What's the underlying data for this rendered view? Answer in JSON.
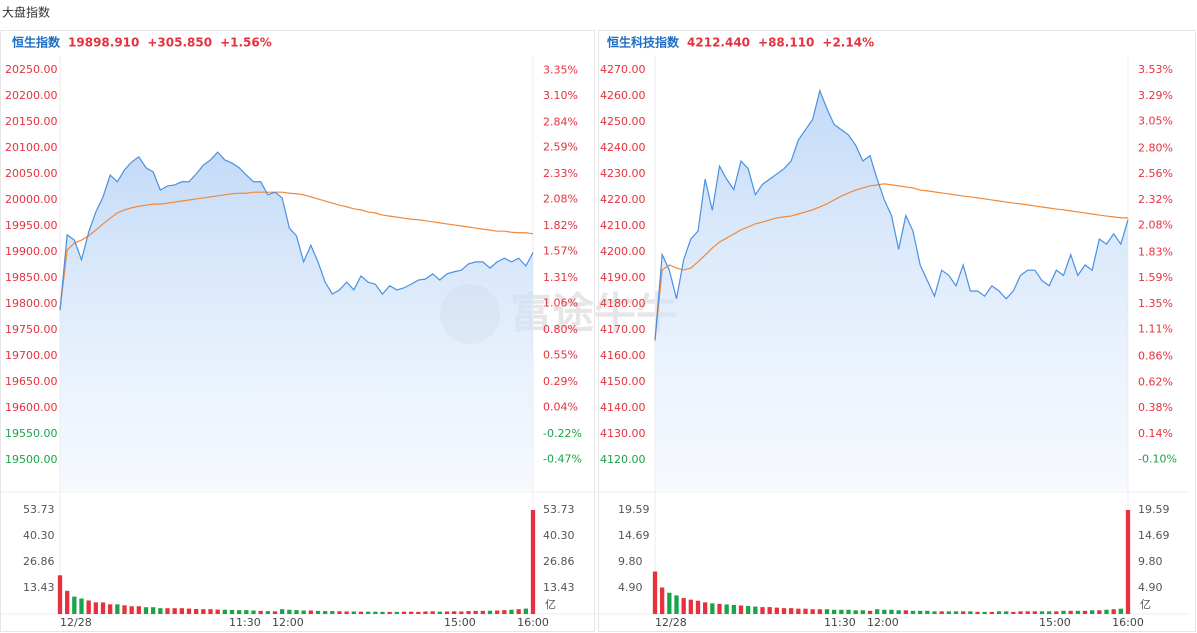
{
  "page_title": "大盘指数",
  "watermark": "富途牛牛",
  "chart_data": [
    {
      "type": "line",
      "name": "恒生指数",
      "last": "19898.910",
      "change": "+305.850",
      "change_pct": "+1.56%",
      "x": [
        0,
        5,
        10,
        15,
        20,
        25,
        30,
        35,
        40,
        45,
        50,
        55,
        60,
        65,
        70,
        75,
        80,
        85,
        90,
        95,
        100,
        105,
        110,
        115,
        120,
        125,
        130,
        135,
        140,
        145,
        150,
        155,
        160,
        165,
        170,
        175,
        180,
        185,
        190,
        195,
        200,
        205,
        210,
        215,
        220,
        225,
        230,
        235,
        240,
        245,
        250,
        255,
        260,
        265,
        270,
        275,
        280,
        285,
        290,
        295,
        300,
        305,
        310,
        315,
        320,
        325,
        330
      ],
      "xlim": [
        0,
        330
      ],
      "xticks": [
        {
          "value": 0,
          "label": "12/28"
        },
        {
          "value": 129,
          "label": "11:30"
        },
        {
          "value": 159,
          "label": "12:00"
        },
        {
          "value": 279,
          "label": "15:00"
        },
        {
          "value": 330,
          "label": "16:00"
        }
      ],
      "series": [
        {
          "color": "#4a90e2",
          "values": [
            19788,
            19933,
            19923,
            19885,
            19938,
            19977,
            20006,
            20048,
            20035,
            20058,
            20073,
            20083,
            20062,
            20054,
            20019,
            20027,
            20029,
            20035,
            20035,
            20050,
            20067,
            20077,
            20092,
            20077,
            20071,
            20062,
            20048,
            20035,
            20035,
            20010,
            20015,
            20004,
            19946,
            19931,
            19881,
            19913,
            19881,
            19842,
            19819,
            19827,
            19842,
            19827,
            19854,
            19842,
            19838,
            19819,
            19835,
            19827,
            19831,
            19838,
            19846,
            19848,
            19858,
            19846,
            19858,
            19862,
            19865,
            19877,
            19881,
            19881,
            19869,
            19881,
            19888,
            19881,
            19888,
            19873,
            19898.91
          ]
        },
        {
          "color": "#f0893a",
          "values": [
            19788,
            19904,
            19917,
            19923,
            19931,
            19942,
            19954,
            19965,
            19975,
            19981,
            19985,
            19988,
            19990,
            19992,
            19992,
            19994,
            19996,
            19998,
            20000,
            20002,
            20004,
            20006,
            20008,
            20010,
            20012,
            20013,
            20013,
            20015,
            20015,
            20015,
            20015,
            20015,
            20013,
            20012,
            20010,
            20006,
            20002,
            19998,
            19994,
            19990,
            19987,
            19983,
            19981,
            19977,
            19975,
            19971,
            19969,
            19967,
            19965,
            19963,
            19962,
            19960,
            19958,
            19956,
            19954,
            19952,
            19950,
            19948,
            19946,
            19944,
            19942,
            19940,
            19940,
            19938,
            19937,
            19937,
            19935
          ]
        }
      ],
      "ylim": [
        19442.3,
        20269.2
      ],
      "yticks": [
        {
          "value": 20250,
          "label": "20250.00"
        },
        {
          "value": 20200,
          "label": "20200.00"
        },
        {
          "value": 20150,
          "label": "20150.00"
        },
        {
          "value": 20100,
          "label": "20100.00"
        },
        {
          "value": 20050,
          "label": "20050.00"
        },
        {
          "value": 20000,
          "label": "20000.00"
        },
        {
          "value": 19950,
          "label": "19950.00"
        },
        {
          "value": 19900,
          "label": "19900.00"
        },
        {
          "value": 19850,
          "label": "19850.00"
        },
        {
          "value": 19800,
          "label": "19800.00"
        },
        {
          "value": 19750,
          "label": "19750.00"
        },
        {
          "value": 19700,
          "label": "19700.00"
        },
        {
          "value": 19650,
          "label": "19650.00"
        },
        {
          "value": 19600,
          "label": "19600.00"
        },
        {
          "value": 19550,
          "label": "19550.00"
        },
        {
          "value": 19500,
          "label": "19500.00"
        }
      ],
      "y2lim": [
        -0.769,
        3.451
      ],
      "y2ticks": [
        {
          "value": 3.35,
          "label": "3.35%"
        },
        {
          "value": 3.1,
          "label": "3.10%"
        },
        {
          "value": 2.84,
          "label": "2.84%"
        },
        {
          "value": 2.59,
          "label": "2.59%"
        },
        {
          "value": 2.33,
          "label": "2.33%"
        },
        {
          "value": 2.08,
          "label": "2.08%"
        },
        {
          "value": 1.82,
          "label": "1.82%"
        },
        {
          "value": 1.57,
          "label": "1.57%"
        },
        {
          "value": 1.31,
          "label": "1.31%"
        },
        {
          "value": 1.06,
          "label": "1.06%"
        },
        {
          "value": 0.8,
          "label": "0.80%"
        },
        {
          "value": 0.55,
          "label": "0.55%"
        },
        {
          "value": 0.29,
          "label": "0.29%"
        },
        {
          "value": 0.04,
          "label": "0.04%"
        },
        {
          "value": -0.22,
          "label": "-0.22%"
        },
        {
          "value": -0.47,
          "label": "-0.47%"
        }
      ],
      "volume": {
        "unit": "亿",
        "ylim": [
          0,
          58.9
        ],
        "yticks": [
          53.73,
          {
            "value": 40.3,
            "label": "40.30"
          },
          26.86,
          13.43
        ],
        "values": [
          20,
          12,
          9,
          8,
          7,
          6,
          6,
          5,
          5,
          4.5,
          4,
          4,
          3.5,
          3.5,
          3,
          3,
          3,
          3,
          2.8,
          2.6,
          2.5,
          2.5,
          2.3,
          2.2,
          2.1,
          2,
          2,
          1.8,
          1.6,
          1.5,
          1.4,
          2.5,
          2.2,
          2,
          1.8,
          1.8,
          1.6,
          1.5,
          1.5,
          1.4,
          1.3,
          1.3,
          1.2,
          1.2,
          1.2,
          1.1,
          1.1,
          1.1,
          1.2,
          1.2,
          1.1,
          1.3,
          1.4,
          1.2,
          1.3,
          1.4,
          1.3,
          1.5,
          1.6,
          1.6,
          1.7,
          1.8,
          2,
          2.2,
          2.5,
          2.8,
          53.73
        ]
      }
    },
    {
      "type": "line",
      "name": "恒生科技指数",
      "last": "4212.440",
      "change": "+88.110",
      "change_pct": "+2.14%",
      "x": [
        0,
        5,
        10,
        15,
        20,
        25,
        30,
        35,
        40,
        45,
        50,
        55,
        60,
        65,
        70,
        75,
        80,
        85,
        90,
        95,
        100,
        105,
        110,
        115,
        120,
        125,
        130,
        135,
        140,
        145,
        150,
        155,
        160,
        165,
        170,
        175,
        180,
        185,
        190,
        195,
        200,
        205,
        210,
        215,
        220,
        225,
        230,
        235,
        240,
        245,
        250,
        255,
        260,
        265,
        270,
        275,
        280,
        285,
        290,
        295,
        300,
        305,
        310,
        315,
        320,
        325,
        330
      ],
      "xlim": [
        0,
        330
      ],
      "xticks": [
        {
          "value": 0,
          "label": "12/28"
        },
        {
          "value": 129,
          "label": "11:30"
        },
        {
          "value": 159,
          "label": "12:00"
        },
        {
          "value": 279,
          "label": "15:00"
        },
        {
          "value": 330,
          "label": "16:00"
        }
      ],
      "series": [
        {
          "color": "#4a90e2",
          "values": [
            4166,
            4199,
            4193,
            4182,
            4197,
            4205,
            4208,
            4228,
            4216,
            4233,
            4228,
            4224,
            4235,
            4232,
            4222,
            4226,
            4228,
            4230,
            4232,
            4235,
            4243,
            4247,
            4251,
            4262,
            4255,
            4249,
            4247,
            4245,
            4241,
            4235,
            4237,
            4228,
            4220,
            4214,
            4201,
            4214,
            4208,
            4195,
            4189,
            4183,
            4193,
            4191,
            4187,
            4195,
            4185,
            4185,
            4183,
            4187,
            4185,
            4182,
            4185,
            4191,
            4193,
            4193,
            4189,
            4187,
            4193,
            4191,
            4199,
            4191,
            4195,
            4193,
            4205,
            4203,
            4207,
            4203,
            4212.44
          ]
        },
        {
          "color": "#f0893a",
          "values": [
            4166.2,
            4193.1,
            4195.0,
            4193.8,
            4193.1,
            4193.8,
            4196.2,
            4198.8,
            4201.5,
            4203.8,
            4205.4,
            4206.9,
            4208.5,
            4209.6,
            4210.8,
            4211.5,
            4212.3,
            4213.1,
            4213.5,
            4213.8,
            4214.6,
            4215.4,
            4216.2,
            4217.3,
            4218.5,
            4220.0,
            4221.5,
            4222.7,
            4223.8,
            4224.6,
            4225.4,
            4225.8,
            4226.2,
            4225.8,
            4225.4,
            4225.0,
            4224.6,
            4223.8,
            4223.5,
            4223.1,
            4222.7,
            4222.3,
            4221.9,
            4221.5,
            4221.2,
            4220.8,
            4220.4,
            4220.0,
            4219.6,
            4219.2,
            4218.8,
            4218.5,
            4218.1,
            4217.7,
            4217.3,
            4216.9,
            4216.5,
            4216.2,
            4215.8,
            4215.4,
            4215.0,
            4214.6,
            4214.2,
            4213.8,
            4213.5,
            4213.1,
            4213.1
          ]
        }
      ],
      "ylim": [
        4108.5,
        4273.8
      ],
      "yticks": [
        {
          "value": 4270,
          "label": "4270.00"
        },
        {
          "value": 4260,
          "label": "4260.00"
        },
        {
          "value": 4250,
          "label": "4250.00"
        },
        {
          "value": 4240,
          "label": "4240.00"
        },
        {
          "value": 4230,
          "label": "4230.00"
        },
        {
          "value": 4220,
          "label": "4220.00"
        },
        {
          "value": 4210,
          "label": "4210.00"
        },
        {
          "value": 4200,
          "label": "4200.00"
        },
        {
          "value": 4190,
          "label": "4190.00"
        },
        {
          "value": 4180,
          "label": "4180.00"
        },
        {
          "value": 4170,
          "label": "4170.00"
        },
        {
          "value": 4160,
          "label": "4160.00"
        },
        {
          "value": 4150,
          "label": "4150.00"
        },
        {
          "value": 4140,
          "label": "4140.00"
        },
        {
          "value": 4130,
          "label": "4130.00"
        },
        {
          "value": 4120,
          "label": "4120.00"
        }
      ],
      "y2lim": [
        -0.384,
        3.624
      ],
      "y2ticks": [
        {
          "value": 3.53,
          "label": "3.53%"
        },
        {
          "value": 3.29,
          "label": "3.29%"
        },
        {
          "value": 3.05,
          "label": "3.05%"
        },
        {
          "value": 2.8,
          "label": "2.80%"
        },
        {
          "value": 2.56,
          "label": "2.56%"
        },
        {
          "value": 2.32,
          "label": "2.32%"
        },
        {
          "value": 2.08,
          "label": "2.08%"
        },
        {
          "value": 1.83,
          "label": "1.83%"
        },
        {
          "value": 1.59,
          "label": "1.59%"
        },
        {
          "value": 1.35,
          "label": "1.35%"
        },
        {
          "value": 1.11,
          "label": "1.11%"
        },
        {
          "value": 0.86,
          "label": "0.86%"
        },
        {
          "value": 0.62,
          "label": "0.62%"
        },
        {
          "value": 0.38,
          "label": "0.38%"
        },
        {
          "value": 0.14,
          "label": "0.14%"
        },
        {
          "value": -0.1,
          "label": "-0.10%"
        }
      ],
      "volume": {
        "unit": "亿",
        "ylim": [
          0,
          21.47
        ],
        "yticks": [
          19.59,
          14.69,
          {
            "value": 9.8,
            "label": "9.80"
          },
          {
            "value": 4.9,
            "label": "4.90"
          }
        ],
        "values": [
          8,
          5,
          4,
          3.5,
          3,
          2.7,
          2.5,
          2.2,
          2,
          1.9,
          1.8,
          1.7,
          1.6,
          1.5,
          1.4,
          1.3,
          1.3,
          1.2,
          1.1,
          1.1,
          1,
          1,
          0.9,
          0.9,
          0.9,
          0.8,
          0.8,
          0.8,
          0.7,
          0.7,
          0.6,
          0.9,
          0.8,
          0.8,
          0.7,
          0.7,
          0.6,
          0.6,
          0.6,
          0.5,
          0.5,
          0.5,
          0.5,
          0.5,
          0.5,
          0.4,
          0.4,
          0.4,
          0.5,
          0.5,
          0.4,
          0.5,
          0.5,
          0.5,
          0.5,
          0.5,
          0.5,
          0.6,
          0.6,
          0.6,
          0.6,
          0.7,
          0.7,
          0.8,
          0.9,
          1,
          19.59
        ]
      }
    }
  ]
}
